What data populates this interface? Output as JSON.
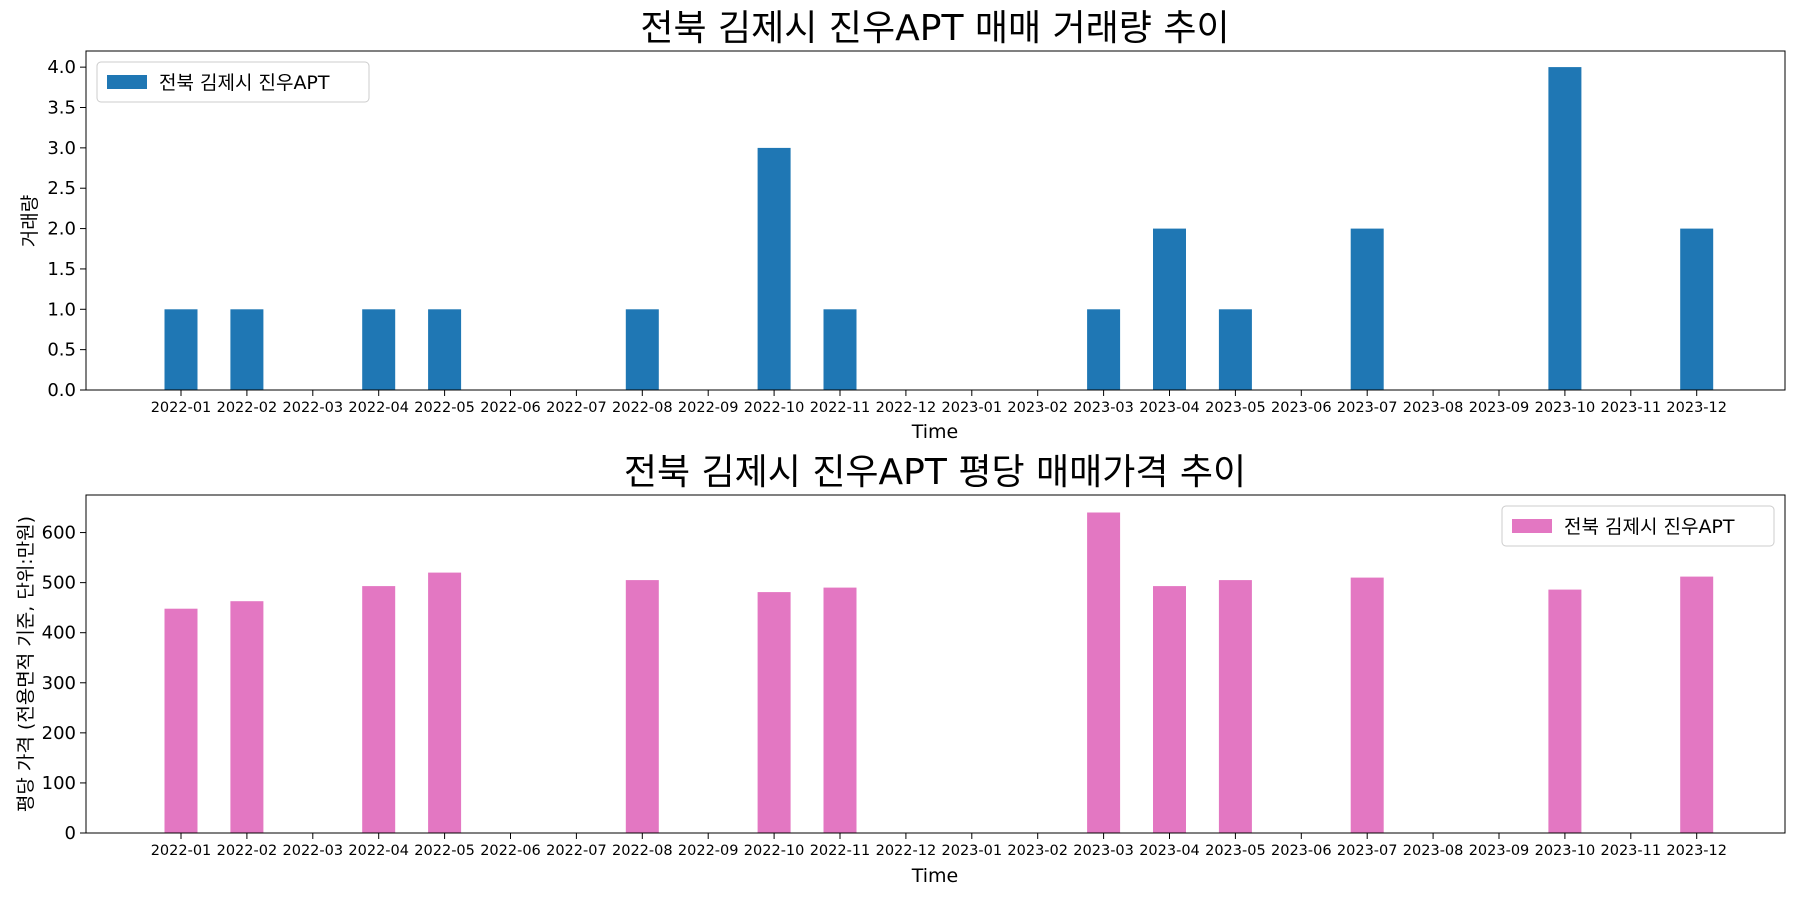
{
  "chart_data": [
    {
      "type": "bar",
      "title": "전북 김제시 진우APT 매매 거래량 추이",
      "xlabel": "Time",
      "ylabel": "거래량",
      "ylim": [
        0,
        4.2
      ],
      "yticks": [
        "0.0",
        "0.5",
        "1.0",
        "1.5",
        "2.0",
        "2.5",
        "3.0",
        "3.5",
        "4.0"
      ],
      "legend_position": "upper-left",
      "color": "#1f77b4",
      "categories": [
        "2022-01",
        "2022-02",
        "2022-03",
        "2022-04",
        "2022-05",
        "2022-06",
        "2022-07",
        "2022-08",
        "2022-09",
        "2022-10",
        "2022-11",
        "2022-12",
        "2023-01",
        "2023-02",
        "2023-03",
        "2023-04",
        "2023-05",
        "2023-06",
        "2023-07",
        "2023-08",
        "2023-09",
        "2023-10",
        "2023-11",
        "2023-12"
      ],
      "series": [
        {
          "name": "전북 김제시 진우APT",
          "values": [
            1,
            1,
            0,
            1,
            1,
            0,
            0,
            1,
            0,
            3,
            1,
            0,
            0,
            0,
            1,
            2,
            1,
            0,
            2,
            0,
            0,
            4,
            0,
            2
          ]
        }
      ]
    },
    {
      "type": "bar",
      "title": "전북 김제시 진우APT 평당 매매가격 추이",
      "xlabel": "Time",
      "ylabel": "평당 가격 (전용면적 기준, 단위:만원)",
      "ylim": [
        0,
        675
      ],
      "yticks": [
        "0",
        "100",
        "200",
        "300",
        "400",
        "500",
        "600"
      ],
      "legend_position": "upper-right",
      "color": "#e377c2",
      "categories": [
        "2022-01",
        "2022-02",
        "2022-03",
        "2022-04",
        "2022-05",
        "2022-06",
        "2022-07",
        "2022-08",
        "2022-09",
        "2022-10",
        "2022-11",
        "2022-12",
        "2023-01",
        "2023-02",
        "2023-03",
        "2023-04",
        "2023-05",
        "2023-06",
        "2023-07",
        "2023-08",
        "2023-09",
        "2023-10",
        "2023-11",
        "2023-12"
      ],
      "series": [
        {
          "name": "전북 김제시 진우APT",
          "values": [
            448,
            463,
            0,
            493,
            520,
            0,
            0,
            505,
            0,
            481,
            490,
            0,
            0,
            0,
            640,
            493,
            505,
            0,
            510,
            0,
            0,
            486,
            0,
            512
          ]
        }
      ]
    }
  ]
}
